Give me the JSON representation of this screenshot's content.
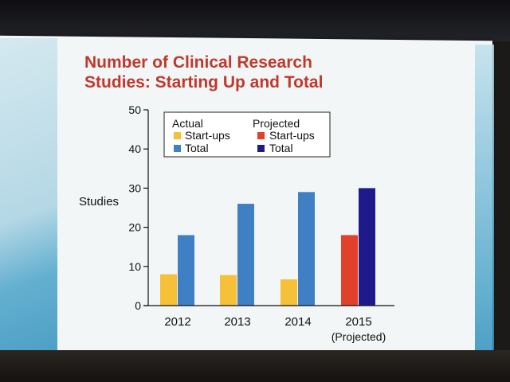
{
  "slide": {
    "title_line1": "Number of Clinical Research",
    "title_line2": "Studies: Starting Up and Total"
  },
  "colors": {
    "actual_startups": "#f6c038",
    "actual_total": "#3f7fc4",
    "projected_startups": "#e2402b",
    "projected_total": "#1f1a8c",
    "title": "#c0392b"
  },
  "chart_data": {
    "type": "bar",
    "title": "Number of Clinical Research Studies: Starting Up and Total",
    "xlabel": "",
    "ylabel": "Studies",
    "ylim": [
      0,
      50
    ],
    "yticks": [
      0,
      10,
      20,
      30,
      40,
      50
    ],
    "categories": [
      "2012",
      "2013",
      "2014",
      "2015"
    ],
    "category_sublabels": [
      "",
      "",
      "",
      "(Projected)"
    ],
    "series": [
      {
        "name": "Actual Start-ups",
        "values": [
          8,
          7.8,
          6.7,
          null
        ]
      },
      {
        "name": "Actual Total",
        "values": [
          18,
          26,
          29,
          null
        ]
      },
      {
        "name": "Projected Start-ups",
        "values": [
          null,
          null,
          null,
          18
        ]
      },
      {
        "name": "Projected Total",
        "values": [
          null,
          null,
          null,
          30
        ]
      }
    ],
    "legend": {
      "placement": "top-left",
      "group_actual": "Actual",
      "group_projected": "Projected",
      "startups_label": "Start-ups",
      "total_label": "Total"
    },
    "grid": false
  }
}
